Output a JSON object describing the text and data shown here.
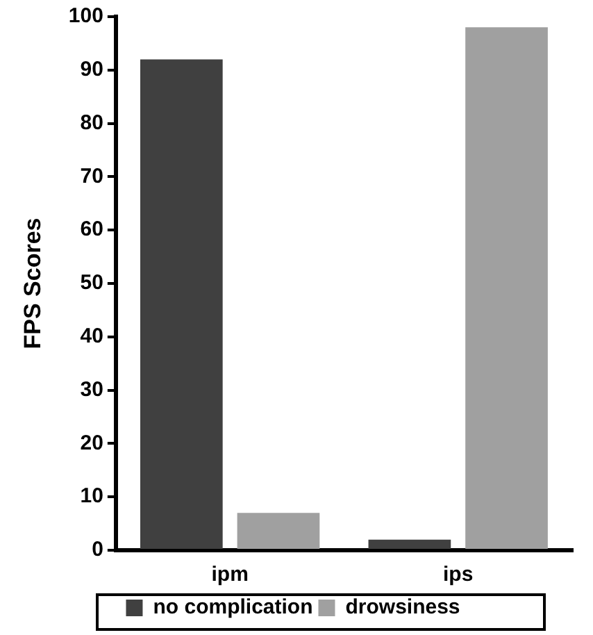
{
  "chart_data": {
    "type": "bar",
    "ylabel": "FPS Scores",
    "categories": [
      "ipm",
      "ips"
    ],
    "series": [
      {
        "name": "no complication",
        "color": "#404040",
        "values": [
          92,
          2
        ]
      },
      {
        "name": "drowsiness",
        "color": "#a0a0a0",
        "values": [
          7,
          98
        ]
      }
    ],
    "ylim": [
      0,
      100
    ],
    "yticks": [
      0,
      10,
      20,
      30,
      40,
      50,
      60,
      70,
      80,
      90,
      100
    ],
    "grid": false,
    "legend": "bottom"
  }
}
